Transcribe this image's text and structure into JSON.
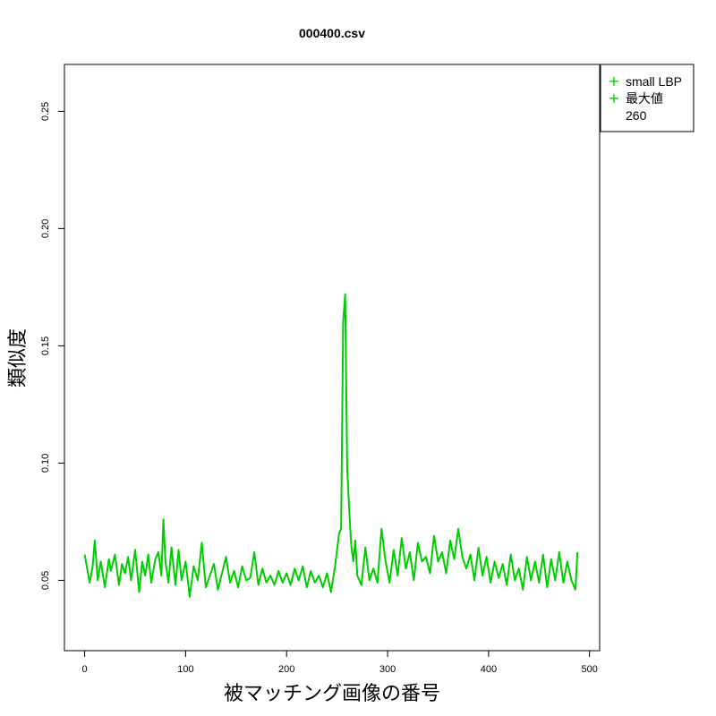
{
  "chart_data": {
    "type": "line",
    "title": "000400.csv",
    "xlabel": "被マッチング画像の番号",
    "ylabel": "類似度",
    "xlim": [
      -20,
      510
    ],
    "ylim": [
      0.02,
      0.27
    ],
    "x_ticks": [
      0,
      100,
      200,
      300,
      400,
      500
    ],
    "y_ticks": [
      0.05,
      0.1,
      0.15,
      0.2,
      0.25
    ],
    "grid": false,
    "legend_position": "top-right, outside plot",
    "legend": [
      "small LBP",
      "最大値",
      "260"
    ],
    "series_color": "#00cd00",
    "series": [
      {
        "name": "small LBP",
        "x": [
          0,
          5,
          8,
          10,
          13,
          16,
          20,
          24,
          26,
          30,
          34,
          37,
          40,
          43,
          46,
          50,
          54,
          57,
          60,
          63,
          66,
          70,
          73,
          76,
          78,
          80,
          83,
          86,
          90,
          93,
          96,
          100,
          104,
          108,
          112,
          116,
          120,
          124,
          128,
          132,
          136,
          140,
          144,
          148,
          152,
          156,
          160,
          164,
          168,
          172,
          176,
          180,
          184,
          188,
          192,
          196,
          200,
          204,
          208,
          212,
          216,
          220,
          224,
          228,
          232,
          236,
          240,
          244,
          248,
          250,
          252,
          254,
          256,
          258,
          260,
          262,
          264,
          266,
          268,
          270,
          274,
          278,
          282,
          286,
          290,
          294,
          298,
          302,
          306,
          310,
          314,
          318,
          322,
          326,
          330,
          334,
          338,
          342,
          346,
          350,
          354,
          358,
          362,
          366,
          370,
          374,
          378,
          382,
          386,
          390,
          394,
          398,
          402,
          406,
          410,
          414,
          418,
          422,
          426,
          430,
          434,
          438,
          442,
          446,
          450,
          454,
          458,
          462,
          466,
          470,
          474,
          478,
          482,
          486,
          488
        ],
        "y": [
          0.061,
          0.049,
          0.056,
          0.067,
          0.05,
          0.058,
          0.047,
          0.059,
          0.054,
          0.061,
          0.048,
          0.057,
          0.053,
          0.06,
          0.05,
          0.063,
          0.045,
          0.058,
          0.052,
          0.061,
          0.049,
          0.059,
          0.062,
          0.052,
          0.076,
          0.058,
          0.049,
          0.064,
          0.048,
          0.063,
          0.05,
          0.058,
          0.043,
          0.056,
          0.05,
          0.066,
          0.047,
          0.052,
          0.057,
          0.046,
          0.053,
          0.06,
          0.049,
          0.054,
          0.047,
          0.056,
          0.05,
          0.051,
          0.062,
          0.048,
          0.055,
          0.049,
          0.052,
          0.048,
          0.054,
          0.049,
          0.053,
          0.048,
          0.055,
          0.05,
          0.056,
          0.047,
          0.054,
          0.049,
          0.052,
          0.047,
          0.053,
          0.045,
          0.056,
          0.063,
          0.07,
          0.072,
          0.16,
          0.172,
          0.098,
          0.08,
          0.065,
          0.058,
          0.067,
          0.052,
          0.048,
          0.064,
          0.05,
          0.055,
          0.049,
          0.072,
          0.058,
          0.049,
          0.063,
          0.052,
          0.068,
          0.055,
          0.062,
          0.05,
          0.066,
          0.058,
          0.06,
          0.053,
          0.069,
          0.058,
          0.062,
          0.053,
          0.067,
          0.059,
          0.072,
          0.06,
          0.055,
          0.061,
          0.05,
          0.064,
          0.052,
          0.06,
          0.049,
          0.058,
          0.051,
          0.057,
          0.048,
          0.061,
          0.05,
          0.055,
          0.046,
          0.06,
          0.05,
          0.058,
          0.049,
          0.061,
          0.047,
          0.059,
          0.05,
          0.062,
          0.049,
          0.058,
          0.05,
          0.046,
          0.062
        ]
      }
    ]
  }
}
